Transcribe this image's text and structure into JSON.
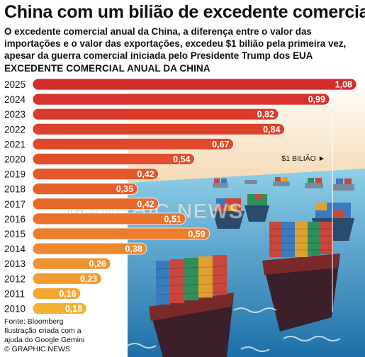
{
  "title": "China com um bilião de excedente comercial",
  "subtitle": "O excedente comercial anual da China, a diferença entre o valor das importações e o valor das exportações, excedeu $1 bilião pela primeira vez, apesar da guerra comercial iniciada pelo Presidente Trump dos EUA",
  "section_label": "EXCEDENTE COMERCIAL ANUAL DA CHINA",
  "reference_label": "$1 BILIÃO ►",
  "watermark": "GRAPHIC NEWS",
  "footer": {
    "source": "Fonte: Bloomberg",
    "illustration_line1": "Ilustração criada com a",
    "illustration_line2": "ajuda do Google Gemini",
    "copyright": "© GRAPHIC NEWS"
  },
  "colors": {
    "bar_high": "#d42b2b",
    "bar_mid": "#e8632a",
    "bar_low": "#f2b233",
    "text": "#111111"
  },
  "chart_data": {
    "type": "bar",
    "orientation": "horizontal",
    "categories": [
      "2025",
      "2024",
      "2023",
      "2022",
      "2021",
      "2020",
      "2019",
      "2018",
      "2017",
      "2016",
      "2015",
      "2014",
      "2013",
      "2012",
      "2011",
      "2010"
    ],
    "values": [
      1.08,
      0.99,
      0.82,
      0.84,
      0.67,
      0.54,
      0.42,
      0.35,
      0.42,
      0.51,
      0.59,
      0.38,
      0.26,
      0.23,
      0.16,
      0.18
    ],
    "value_labels": [
      "1,08",
      "0,99",
      "0,82",
      "0,84",
      "0,67",
      "0,54",
      "0,42",
      "0,35",
      "0,42",
      "0,51",
      "0,59",
      "0,38",
      "0,26",
      "0,23",
      "0,16",
      "0,18"
    ],
    "reference_value": 1.0,
    "xlim": [
      0,
      1.08
    ]
  }
}
